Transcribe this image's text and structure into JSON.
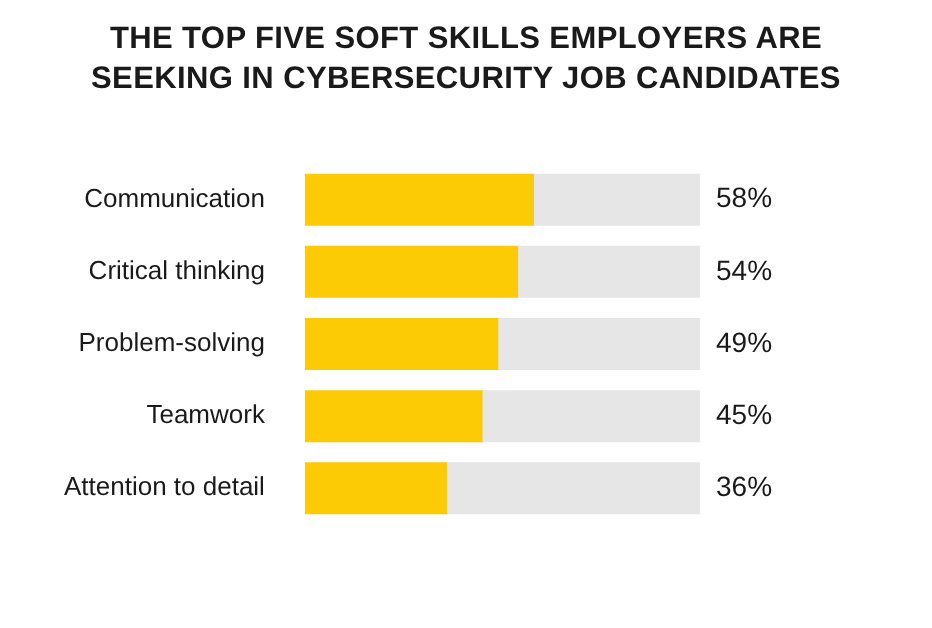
{
  "chart_data": {
    "type": "bar",
    "orientation": "horizontal",
    "stacked": true,
    "title": "THE TOP FIVE SOFT SKILLS EMPLOYERS ARE SEEKING IN CYBERSECURITY JOB CANDIDATES",
    "categories": [
      "Communication",
      "Critical thinking",
      "Problem-solving",
      "Teamwork",
      "Attention to detail"
    ],
    "xlim": [
      0,
      100
    ],
    "tick_labels": "y",
    "legend": false,
    "series": [
      {
        "color": "#fccb06",
        "values": [
          58,
          54,
          49,
          45,
          36
        ],
        "value_labels": [
          "58%",
          "54%",
          "49%",
          "45%",
          "36%"
        ]
      },
      {
        "color": "#e6e6e6",
        "values": [
          42,
          46,
          51,
          55,
          64
        ]
      }
    ]
  }
}
